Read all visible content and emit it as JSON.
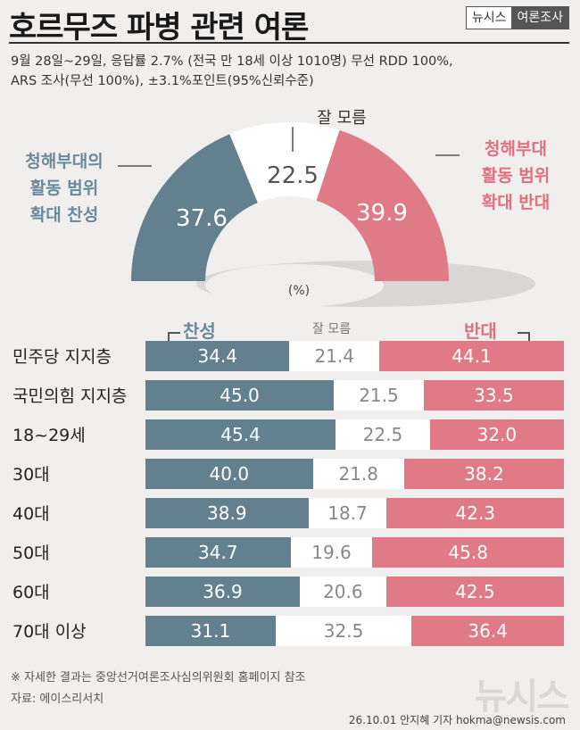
{
  "header": {
    "title": "호르무즈 파병 관련 여론",
    "brand_left": "뉴시스",
    "brand_right": "여론조사",
    "subtitle_line1": "9월 28일~29일, 응답률 2.7% (전국 만 18세 이상 1010명) 무선 RDD 100%,",
    "subtitle_line2": "ARS 조사(무선 100%), ±3.1%포인트(95%신뢰수준)"
  },
  "gauge": {
    "label_for_1": "청해부대의",
    "label_for_2": "활동 범위",
    "label_for_3": "확대 찬성",
    "label_against_1": "청해부대",
    "label_against_2": "활동 범위",
    "label_against_3": "확대 반대",
    "label_unknown": "잘 모름",
    "unit": "(%)",
    "colors": {
      "for": "#62808e",
      "unknown": "#ffffff",
      "against": "#e07a86"
    }
  },
  "table_header": {
    "for": "찬성",
    "unknown": "잘 모름",
    "against": "반대"
  },
  "chart_data": [
    {
      "type": "pie",
      "categories": [
        "청해부대의 활동 범위 확대 찬성",
        "잘 모름",
        "청해부대 활동 범위 확대 반대"
      ],
      "values": [
        37.6,
        22.5,
        39.9
      ],
      "unit": "(%)"
    },
    {
      "type": "bar",
      "stacked": true,
      "orientation": "horizontal",
      "categories": [
        "민주당 지지층",
        "국민의힘 지지층",
        "18~29세",
        "30대",
        "40대",
        "50대",
        "60대",
        "70대 이상"
      ],
      "series": [
        {
          "name": "찬성",
          "values": [
            34.4,
            45.0,
            45.4,
            40.0,
            38.9,
            34.7,
            36.9,
            31.1
          ]
        },
        {
          "name": "잘 모름",
          "values": [
            21.4,
            21.5,
            22.5,
            21.8,
            18.7,
            19.6,
            20.6,
            32.5
          ]
        },
        {
          "name": "반대",
          "values": [
            44.1,
            33.5,
            32.0,
            38.2,
            42.3,
            45.8,
            42.5,
            36.4
          ]
        }
      ]
    }
  ],
  "footer": {
    "note": "※ 자세한 결과는 중앙선거여론조사심의위원회 홈페이지 참조",
    "source": "자료: 에이스리서치",
    "watermark": "뉴시스",
    "credit": "26.10.01 안지혜 기자 hokma@newsis.com"
  }
}
